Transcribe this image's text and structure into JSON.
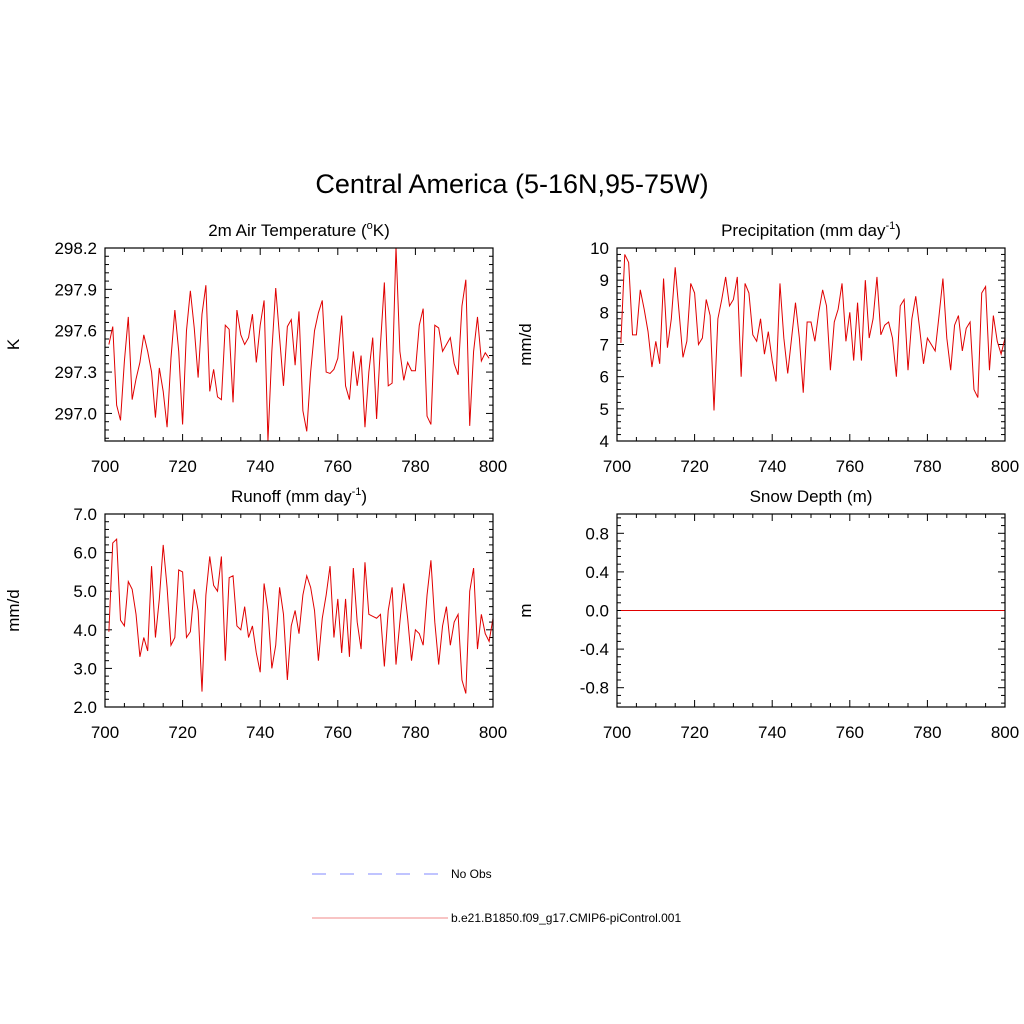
{
  "figure_title": "Central America (5-16N,95-75W)",
  "colors": {
    "model": "#e00000",
    "obs": "#9aa0ff",
    "axis": "#000000"
  },
  "legend": {
    "obs_label": "No Obs",
    "model_label": "b.e21.B1850.f09_g17.CMIP6-piControl.001"
  },
  "chart_data": [
    {
      "type": "line",
      "title": "2m Air Temperature (",
      "title_sup": "o",
      "title_end": "K)",
      "ylabel": "K",
      "xlim": [
        700,
        800
      ],
      "ylim": [
        296.8,
        298.2
      ],
      "xticks": [
        700,
        720,
        740,
        760,
        780,
        800
      ],
      "yticks": [
        297.0,
        297.3,
        297.6,
        297.9,
        298.2
      ],
      "ytick_labels": [
        "297.0",
        "297.3",
        "297.6",
        "297.9",
        "298.2"
      ],
      "series": [
        {
          "x_start": 701,
          "values": [
            297.5,
            297.63,
            297.06,
            296.95,
            297.38,
            297.7,
            297.1,
            297.25,
            297.37,
            297.57,
            297.45,
            297.3,
            296.97,
            297.33,
            297.16,
            296.9,
            297.4,
            297.75,
            297.45,
            296.92,
            297.6,
            297.89,
            297.62,
            297.26,
            297.72,
            297.93,
            297.16,
            297.32,
            297.12,
            297.1,
            297.64,
            297.61,
            297.08,
            297.75,
            297.57,
            297.5,
            297.55,
            297.72,
            297.37,
            297.64,
            297.82,
            296.8,
            297.45,
            297.91,
            297.55,
            297.2,
            297.63,
            297.68,
            297.35,
            297.74,
            297.02,
            296.87,
            297.3,
            297.6,
            297.73,
            297.82,
            297.3,
            297.29,
            297.32,
            297.4,
            297.71,
            297.2,
            297.1,
            297.45,
            297.2,
            297.42,
            296.9,
            297.3,
            297.55,
            296.96,
            297.5,
            297.95,
            297.2,
            297.22,
            298.21,
            297.45,
            297.24,
            297.37,
            297.31,
            297.31,
            297.64,
            297.76,
            296.98,
            296.92,
            297.64,
            297.62,
            297.45,
            297.5,
            297.55,
            297.36,
            297.28,
            297.78,
            297.97,
            296.91,
            297.45,
            297.7,
            297.38,
            297.44,
            297.4
          ]
        }
      ]
    },
    {
      "type": "line",
      "title": "Precipitation (mm day",
      "title_sup": "-1",
      "title_end": ")",
      "ylabel": "mm/d",
      "xlim": [
        700,
        800
      ],
      "ylim": [
        4,
        10
      ],
      "xticks": [
        700,
        720,
        740,
        760,
        780,
        800
      ],
      "yticks": [
        4,
        5,
        6,
        7,
        8,
        9,
        10
      ],
      "ytick_labels": [
        "4",
        "5",
        "6",
        "7",
        "8",
        "9",
        "10"
      ],
      "series": [
        {
          "x_start": 701,
          "values": [
            7.05,
            9.8,
            9.55,
            7.3,
            7.3,
            8.7,
            8.1,
            7.4,
            6.3,
            7.1,
            6.4,
            9.05,
            6.9,
            7.8,
            9.4,
            8.0,
            6.6,
            7.1,
            8.9,
            8.6,
            7.0,
            7.2,
            8.4,
            7.9,
            4.95,
            7.8,
            8.4,
            9.1,
            8.2,
            8.4,
            9.1,
            6.0,
            8.9,
            8.6,
            7.3,
            7.1,
            7.8,
            6.7,
            7.4,
            6.5,
            5.85,
            8.9,
            7.2,
            6.1,
            7.2,
            8.3,
            7.2,
            5.5,
            7.7,
            7.7,
            7.1,
            8.0,
            8.7,
            8.2,
            6.2,
            7.7,
            8.1,
            8.9,
            7.1,
            8.0,
            6.5,
            8.3,
            6.5,
            9.0,
            7.2,
            7.8,
            9.1,
            7.3,
            7.6,
            7.7,
            7.2,
            6.0,
            8.2,
            8.4,
            6.2,
            7.8,
            8.5,
            7.5,
            6.4,
            7.2,
            7.0,
            6.8,
            7.9,
            9.05,
            7.2,
            6.2,
            7.6,
            7.9,
            6.8,
            7.5,
            7.7,
            5.6,
            5.35,
            8.6,
            8.8,
            6.2,
            7.9,
            7.1,
            6.7,
            7.2
          ]
        }
      ]
    },
    {
      "type": "line",
      "title": "Runoff (mm day",
      "title_sup": "-1",
      "title_end": ")",
      "ylabel": "mm/d",
      "xlim": [
        700,
        800
      ],
      "ylim": [
        2.0,
        7.0
      ],
      "xticks": [
        700,
        720,
        740,
        760,
        780,
        800
      ],
      "yticks": [
        2.0,
        3.0,
        4.0,
        5.0,
        6.0,
        7.0
      ],
      "ytick_labels": [
        "2.0",
        "3.0",
        "4.0",
        "5.0",
        "6.0",
        "7.0"
      ],
      "series": [
        {
          "x_start": 701,
          "values": [
            3.95,
            6.25,
            6.35,
            4.25,
            4.1,
            5.25,
            5.05,
            4.4,
            3.3,
            3.8,
            3.45,
            5.65,
            3.8,
            4.8,
            6.2,
            5.1,
            3.6,
            3.8,
            5.55,
            5.5,
            3.8,
            3.95,
            5.05,
            4.5,
            2.4,
            4.9,
            5.9,
            5.15,
            5.0,
            5.9,
            3.2,
            5.35,
            5.4,
            4.1,
            4.0,
            4.6,
            3.8,
            4.1,
            3.4,
            2.9,
            5.2,
            4.5,
            3.0,
            3.6,
            5.1,
            4.4,
            2.7,
            4.1,
            4.5,
            3.9,
            4.9,
            5.4,
            5.1,
            4.5,
            3.2,
            4.3,
            4.9,
            5.65,
            3.8,
            4.8,
            3.4,
            4.8,
            3.3,
            5.6,
            4.2,
            3.5,
            5.75,
            4.4,
            4.35,
            4.3,
            4.4,
            3.05,
            4.5,
            5.1,
            3.1,
            4.2,
            5.2,
            4.3,
            3.2,
            4.0,
            3.9,
            3.6,
            4.9,
            5.8,
            4.2,
            3.1,
            4.1,
            4.6,
            3.6,
            4.2,
            4.4,
            2.7,
            2.35,
            5.0,
            5.6,
            3.5,
            4.4,
            3.9,
            3.7,
            4.3
          ]
        }
      ]
    },
    {
      "type": "line",
      "title": "Snow Depth (m)",
      "title_sup": "",
      "title_end": "",
      "ylabel": "m",
      "xlim": [
        700,
        800
      ],
      "ylim": [
        -1.0,
        1.0
      ],
      "xticks": [
        700,
        720,
        740,
        760,
        780,
        800
      ],
      "yticks": [
        -0.8,
        -0.4,
        0.0,
        0.4,
        0.8
      ],
      "ytick_labels": [
        "-0.8",
        "-0.4",
        "0.0",
        "0.4",
        "0.8"
      ],
      "series": [
        {
          "x_start": 701,
          "values": [
            0,
            0,
            0,
            0,
            0,
            0,
            0,
            0,
            0,
            0,
            0,
            0,
            0,
            0,
            0,
            0,
            0,
            0,
            0,
            0,
            0,
            0,
            0,
            0,
            0,
            0,
            0,
            0,
            0,
            0,
            0,
            0,
            0,
            0,
            0,
            0,
            0,
            0,
            0,
            0,
            0,
            0,
            0,
            0,
            0,
            0,
            0,
            0,
            0,
            0,
            0,
            0,
            0,
            0,
            0,
            0,
            0,
            0,
            0,
            0,
            0,
            0,
            0,
            0,
            0,
            0,
            0,
            0,
            0,
            0,
            0,
            0,
            0,
            0,
            0,
            0,
            0,
            0,
            0,
            0,
            0,
            0,
            0,
            0,
            0,
            0,
            0,
            0,
            0,
            0,
            0,
            0,
            0,
            0,
            0,
            0,
            0,
            0,
            0,
            0
          ]
        }
      ]
    }
  ]
}
